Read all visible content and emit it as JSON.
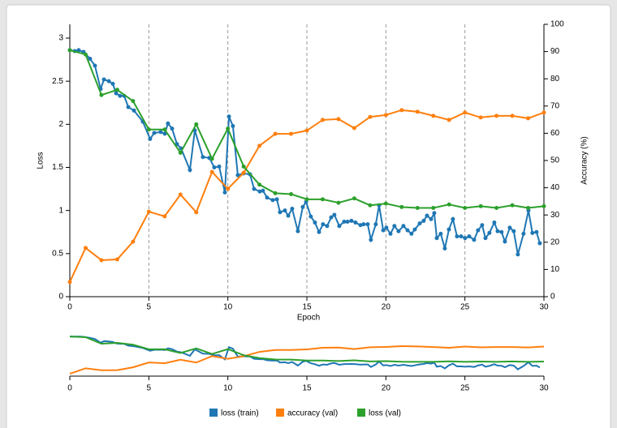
{
  "chart_data": {
    "type": "line",
    "xlabel": "Epoch",
    "ylabel": "Loss",
    "y2label": "Accuracy (%)",
    "xlim": [
      0,
      30
    ],
    "xticks": [
      0,
      5,
      10,
      15,
      20,
      25,
      30
    ],
    "ylim": [
      0,
      3.16
    ],
    "yticks": [
      0,
      0.5,
      1,
      1.5,
      2,
      2.5,
      3
    ],
    "y2lim": [
      0,
      100
    ],
    "y2ticks": [
      0,
      10,
      20,
      30,
      40,
      50,
      60,
      70,
      80,
      90,
      100
    ],
    "grid": true,
    "legend": "bottom",
    "series": [
      {
        "name": "loss (train)",
        "color": "#1f77b4",
        "axis": "y",
        "x": [
          0,
          0.31,
          0.56,
          0.87,
          1.28,
          1.59,
          1.95,
          2.16,
          2.47,
          2.72,
          2.93,
          3.18,
          3.44,
          3.7,
          4.06,
          4.62,
          5.08,
          5.34,
          5.75,
          6.01,
          6.21,
          6.47,
          6.78,
          7.04,
          7.6,
          7.91,
          8.42,
          8.83,
          9.14,
          9.45,
          9.81,
          10.07,
          10.32,
          10.63,
          10.99,
          11.4,
          11.66,
          12.02,
          12.22,
          12.48,
          12.84,
          13.1,
          13.3,
          13.61,
          13.82,
          14.07,
          14.43,
          14.74,
          14.95,
          15.25,
          15.51,
          15.77,
          16.02,
          16.28,
          16.54,
          16.74,
          17.05,
          17.36,
          17.57,
          17.82,
          18.08,
          18.39,
          18.59,
          18.85,
          19.05,
          19.36,
          19.57,
          19.83,
          20.03,
          20.29,
          20.54,
          20.8,
          21.11,
          21.37,
          21.62,
          21.83,
          22.14,
          22.39,
          22.6,
          22.86,
          23.06,
          23.22,
          23.47,
          23.73,
          23.99,
          24.24,
          24.5,
          24.76,
          25.01,
          25.27,
          25.58,
          25.83,
          26.09,
          26.3,
          26.55,
          26.86,
          27.07,
          27.32,
          27.53,
          27.84,
          28.09,
          28.35,
          28.71,
          29.02,
          29.27,
          29.53,
          29.74
        ],
        "values": [
          2.86,
          2.85,
          2.86,
          2.84,
          2.76,
          2.68,
          2.41,
          2.52,
          2.5,
          2.47,
          2.36,
          2.33,
          2.33,
          2.2,
          2.16,
          2.03,
          1.83,
          1.9,
          1.91,
          1.89,
          2.01,
          1.95,
          1.77,
          1.72,
          1.47,
          1.93,
          1.62,
          1.61,
          1.5,
          1.51,
          1.21,
          2.09,
          1.98,
          1.41,
          1.43,
          1.42,
          1.25,
          1.22,
          1.23,
          1.15,
          1.12,
          1.13,
          0.98,
          1.0,
          0.94,
          1.02,
          0.76,
          1.04,
          1.1,
          0.93,
          0.86,
          0.75,
          0.84,
          0.82,
          0.92,
          0.95,
          0.82,
          0.87,
          0.87,
          0.88,
          0.86,
          0.83,
          0.84,
          0.84,
          0.66,
          0.84,
          1.06,
          0.77,
          0.8,
          0.73,
          0.82,
          0.76,
          0.82,
          0.77,
          0.73,
          0.78,
          0.85,
          0.88,
          0.94,
          0.9,
          0.97,
          0.68,
          0.73,
          0.56,
          0.78,
          0.9,
          0.7,
          0.7,
          0.68,
          0.7,
          0.66,
          0.77,
          0.83,
          0.68,
          0.74,
          0.86,
          0.76,
          0.75,
          0.64,
          0.8,
          0.76,
          0.49,
          0.73,
          1.0,
          0.74,
          0.75,
          0.62
        ]
      },
      {
        "name": "accuracy (val)",
        "color": "#ff7f0e",
        "axis": "y2",
        "x": [
          0,
          1,
          2,
          3,
          4,
          5,
          6,
          7,
          8,
          9,
          10,
          11,
          12,
          13,
          14,
          15,
          16,
          17,
          18,
          19,
          20,
          21,
          22,
          23,
          24,
          25,
          26,
          27,
          28,
          29,
          30
        ],
        "values": [
          5.4,
          17.9,
          13.4,
          13.7,
          20.2,
          31.2,
          29.5,
          37.5,
          31,
          45.8,
          39.6,
          45.5,
          55.4,
          59.8,
          59.8,
          61,
          64.9,
          65.2,
          61.9,
          66,
          66.7,
          68.5,
          67.9,
          66.4,
          64.9,
          67.6,
          65.8,
          66.4,
          66.4,
          65.5,
          67.6
        ]
      },
      {
        "name": "loss (val)",
        "color": "#2ca02c",
        "axis": "y",
        "x": [
          0,
          1,
          2,
          3,
          4,
          5,
          6,
          7,
          8,
          9,
          10,
          11,
          12,
          13,
          14,
          15,
          16,
          17,
          18,
          19,
          20,
          21,
          22,
          23,
          24,
          25,
          26,
          27,
          28,
          29,
          30
        ],
        "values": [
          2.86,
          2.81,
          2.34,
          2.4,
          2.27,
          1.94,
          1.94,
          1.67,
          2.0,
          1.6,
          1.95,
          1.51,
          1.3,
          1.2,
          1.19,
          1.13,
          1.13,
          1.09,
          1.14,
          1.06,
          1.08,
          1.04,
          1.03,
          1.03,
          1.07,
          1.03,
          1.05,
          1.03,
          1.06,
          1.03,
          1.05
        ]
      }
    ]
  }
}
